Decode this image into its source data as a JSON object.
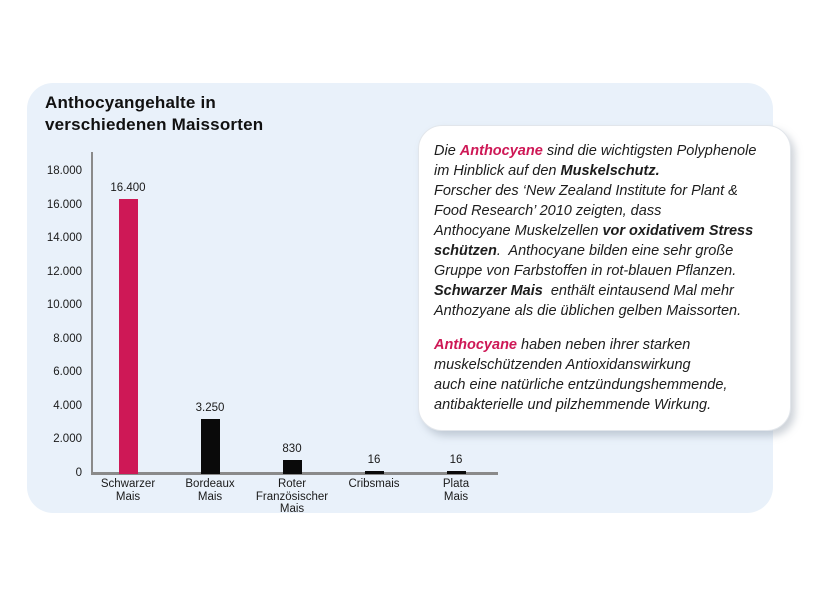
{
  "page": {
    "background": "#ffffff"
  },
  "panel": {
    "bg": "#E9F1FA"
  },
  "title": {
    "line1": "Anthocyangehalte in",
    "line2": "verschiedenen Maissorten"
  },
  "colors": {
    "accent_pink": "#CE1856",
    "bar_black": "#0a0a0a",
    "axis_gray": "#8a8a8a",
    "panel_blue": "#E9F1FA"
  },
  "chart_data": {
    "type": "bar",
    "title": "Anthocyangehalte in verschiedenen Maissorten",
    "xlabel": "",
    "ylabel": "",
    "ylim": [
      0,
      18000
    ],
    "grid": false,
    "legend": null,
    "categories": [
      "Schwarzer\nMais",
      "Bordeaux\nMais",
      "Roter\nFranzösischer\nMais",
      "Cribsmais",
      "Plata\nMais"
    ],
    "values": [
      16400,
      3250,
      830,
      16,
      16
    ],
    "value_labels": [
      "16.400",
      "3.250",
      "830",
      "16",
      "16"
    ],
    "bar_colors": [
      "#CE1856",
      "#0a0a0a",
      "#0a0a0a",
      "#0a0a0a",
      "#0a0a0a"
    ],
    "yticks": {
      "values": [
        0,
        2000,
        4000,
        6000,
        8000,
        10000,
        12000,
        14000,
        16000,
        18000
      ],
      "labels": [
        "0",
        "2.000",
        "4.000",
        "6.000",
        "8.000",
        "10.000",
        "12.000",
        "14.000",
        "16.000",
        "18.000"
      ]
    }
  },
  "infobox": {
    "paragraphs": [
      {
        "lines": [
          [
            {
              "t": "Die "
            },
            {
              "t": "Anthocyane",
              "b": true,
              "p": true
            },
            {
              "t": " sind die wichtigsten Polyphenole"
            }
          ],
          [
            {
              "t": "im Hinblick auf den "
            },
            {
              "t": "Muskelschutz.",
              "b": true
            }
          ],
          [
            {
              "t": "Forscher des ‘New Zealand Institute for Plant &"
            }
          ],
          [
            {
              "t": "Food Research’ 2010 zeigten, dass"
            }
          ],
          [
            {
              "t": "Anthocyane Muskelzellen "
            },
            {
              "t": "vor oxidativem Stress",
              "b": true
            }
          ],
          [
            {
              "t": "schützen",
              "b": true
            },
            {
              "t": ".  Anthocyane bilden eine sehr große"
            }
          ],
          [
            {
              "t": "Gruppe von Farbstoffen in rot-blauen Pflanzen."
            }
          ],
          [
            {
              "t": "Schwarzer Mais",
              "b": true
            },
            {
              "t": "  enthält eintausend Mal mehr"
            }
          ],
          [
            {
              "t": "Anthozyane als die üblichen gelben Maissorten."
            }
          ]
        ]
      },
      {
        "lines": [
          [
            {
              "t": "Anthocyane",
              "b": true,
              "p": true
            },
            {
              "t": " haben neben ihrer starken"
            }
          ],
          [
            {
              "t": "muskelschützenden Antioxidanswirkung"
            }
          ],
          [
            {
              "t": "auch eine natürliche entzündungshemmende,"
            }
          ],
          [
            {
              "t": "antibakterielle und pilzhemmende Wirkung."
            }
          ]
        ]
      }
    ]
  }
}
